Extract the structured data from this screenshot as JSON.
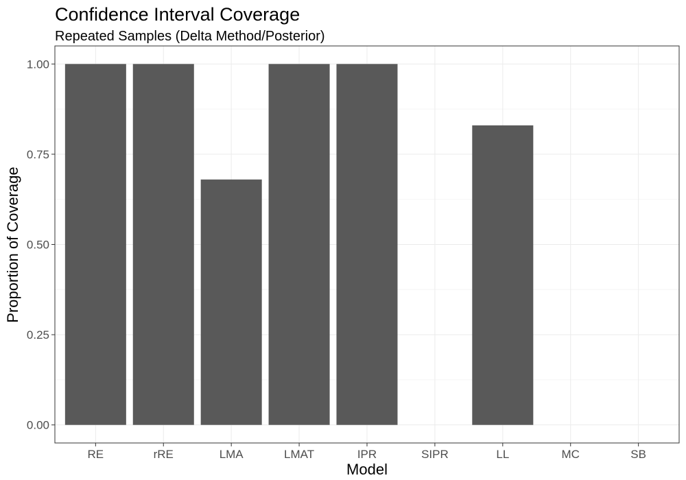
{
  "chart_data": {
    "type": "bar",
    "title": "Confidence Interval Coverage",
    "subtitle": "Repeated Samples (Delta Method/Posterior)",
    "xlabel": "Model",
    "ylabel": "Proportion of Coverage",
    "categories": [
      "RE",
      "rRE",
      "LMA",
      "LMAT",
      "IPR",
      "SIPR",
      "LL",
      "MC",
      "SB"
    ],
    "values": [
      1.0,
      1.0,
      0.68,
      1.0,
      1.0,
      0,
      0.83,
      0,
      0
    ],
    "ylim": [
      -0.05,
      1.05
    ],
    "yticks": [
      0,
      0.25,
      0.5,
      0.75,
      1.0
    ],
    "ytick_labels": [
      "0.00",
      "0.25",
      "0.50",
      "0.75",
      "1.00"
    ],
    "grid": true,
    "colors": {
      "bar": "#595959",
      "grid_major": "#ebebeb",
      "grid_minor": "#f5f5f5",
      "panel_border": "#333333",
      "tick_text": "#4d4d4d",
      "text": "#000000"
    }
  }
}
